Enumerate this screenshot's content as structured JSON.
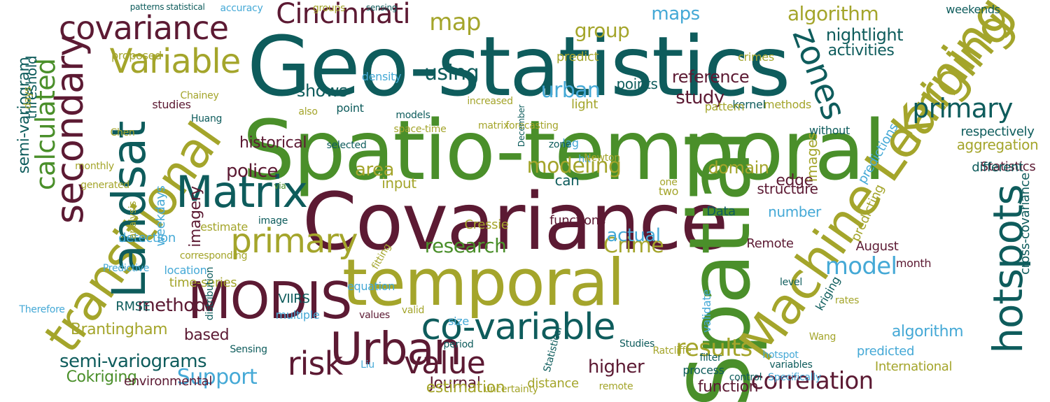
{
  "cloud": {
    "words": [
      {
        "text": "Geo-statistics",
        "color": "teal"
      },
      {
        "text": "Spatio-temporal",
        "color": "green"
      },
      {
        "text": "Covariance",
        "color": "maroon"
      },
      {
        "text": "Spatial",
        "color": "green"
      },
      {
        "text": "temporal",
        "color": "olive"
      },
      {
        "text": "Machine Learning",
        "color": "olive"
      },
      {
        "text": "Kriging",
        "color": "olive"
      },
      {
        "text": "transitional",
        "color": "olive"
      },
      {
        "text": "Landsat",
        "color": "teal"
      },
      {
        "text": "Matrix",
        "color": "teal"
      },
      {
        "text": "MODIS",
        "color": "maroon"
      },
      {
        "text": "Urban",
        "color": "maroon"
      },
      {
        "text": "co-variable",
        "color": "teal"
      },
      {
        "text": "primary",
        "color": "olive"
      },
      {
        "text": "secondary",
        "color": "maroon"
      },
      {
        "text": "Variable",
        "color": "olive"
      },
      {
        "text": "covariance",
        "color": "maroon"
      },
      {
        "text": "hotspots",
        "color": "teal"
      },
      {
        "text": "zones",
        "color": "teal"
      },
      {
        "text": "risk",
        "color": "maroon"
      },
      {
        "text": "value",
        "color": "maroon"
      },
      {
        "text": "Cincinnati",
        "color": "maroon"
      },
      {
        "text": "calculated",
        "color": "green"
      },
      {
        "text": "map",
        "color": "olive"
      },
      {
        "text": "algorithm",
        "color": "olive"
      },
      {
        "text": "maps",
        "color": "blue"
      },
      {
        "text": "nightlight",
        "color": "teal"
      },
      {
        "text": "activities",
        "color": "teal"
      },
      {
        "text": "weekends",
        "color": "teal"
      },
      {
        "text": "group",
        "color": "olive"
      },
      {
        "text": "using",
        "color": "teal"
      },
      {
        "text": "urban",
        "color": "blue"
      },
      {
        "text": "shows",
        "color": "teal"
      },
      {
        "text": "study",
        "color": "maroon"
      },
      {
        "text": "reference",
        "color": "maroon"
      },
      {
        "text": "primary",
        "color": "teal"
      },
      {
        "text": "results",
        "color": "olive"
      },
      {
        "text": "correlation",
        "color": "maroon"
      },
      {
        "text": "model",
        "color": "blue"
      },
      {
        "text": "Support",
        "color": "blue"
      },
      {
        "text": "Crime",
        "color": "olive"
      },
      {
        "text": "research",
        "color": "green"
      },
      {
        "text": "modeling",
        "color": "olive"
      },
      {
        "text": "police",
        "color": "maroon"
      },
      {
        "text": "area",
        "color": "olive"
      },
      {
        "text": "can",
        "color": "teal"
      },
      {
        "text": "input",
        "color": "olive"
      },
      {
        "text": "historical",
        "color": "maroon"
      },
      {
        "text": "domain",
        "color": "olive"
      },
      {
        "text": "edge",
        "color": "maroon"
      },
      {
        "text": "actual",
        "color": "blue"
      },
      {
        "text": "method",
        "color": "maroon"
      },
      {
        "text": "based",
        "color": "maroon"
      },
      {
        "text": "higher",
        "color": "maroon"
      },
      {
        "text": "Cokriging",
        "color": "green"
      },
      {
        "text": "semi-variograms",
        "color": "teal"
      },
      {
        "text": "Brantingham",
        "color": "olive"
      },
      {
        "text": "semi-variogram",
        "color": "teal"
      },
      {
        "text": "threshold",
        "color": "teal"
      },
      {
        "text": "aggregation",
        "color": "olive"
      },
      {
        "text": "respectively",
        "color": "teal"
      },
      {
        "text": "Statistics",
        "color": "maroon"
      },
      {
        "text": "predictions",
        "color": "blue"
      },
      {
        "text": "predicting",
        "color": "olive"
      },
      {
        "text": "number",
        "color": "blue"
      },
      {
        "text": "structure",
        "color": "maroon"
      },
      {
        "text": "imagery",
        "color": "maroon"
      },
      {
        "text": "detection",
        "color": "blue"
      },
      {
        "text": "weekdays",
        "color": "blue"
      },
      {
        "text": "location",
        "color": "blue"
      },
      {
        "text": "RMSE",
        "color": "teal"
      },
      {
        "text": "Journal",
        "color": "maroon"
      },
      {
        "text": "distance",
        "color": "olive"
      },
      {
        "text": "function",
        "color": "maroon"
      },
      {
        "text": "estimation",
        "color": "olive"
      },
      {
        "text": "predicted",
        "color": "blue"
      },
      {
        "text": "International",
        "color": "olive"
      },
      {
        "text": "algorithm",
        "color": "blue"
      },
      {
        "text": "cross-covariance",
        "color": "teal"
      },
      {
        "text": "environmental",
        "color": "maroon"
      },
      {
        "text": "Data",
        "color": "teal"
      },
      {
        "text": "VIIRS",
        "color": "teal"
      },
      {
        "text": "Remote",
        "color": "maroon"
      },
      {
        "text": "validate",
        "color": "blue"
      },
      {
        "text": "different",
        "color": "teal"
      },
      {
        "text": "month",
        "color": "maroon"
      },
      {
        "text": "August",
        "color": "maroon"
      },
      {
        "text": "images",
        "color": "olive"
      },
      {
        "text": "without",
        "color": "teal"
      },
      {
        "text": "points",
        "color": "teal"
      },
      {
        "text": "crimes",
        "color": "olive"
      },
      {
        "text": "light",
        "color": "olive"
      },
      {
        "text": "methods",
        "color": "olive"
      },
      {
        "text": "kernel",
        "color": "teal"
      },
      {
        "text": "point",
        "color": "teal"
      },
      {
        "text": "pattern",
        "color": "olive"
      },
      {
        "text": "predict",
        "color": "olive"
      },
      {
        "text": "density",
        "color": "blue"
      },
      {
        "text": "proposed",
        "color": "olive"
      },
      {
        "text": "studies",
        "color": "maroon"
      },
      {
        "text": "models",
        "color": "teal"
      },
      {
        "text": "Chen",
        "color": "olive"
      },
      {
        "text": "also",
        "color": "olive"
      },
      {
        "text": "hit",
        "color": "blue"
      },
      {
        "text": "one",
        "color": "olive"
      },
      {
        "text": "lag",
        "color": "blue"
      },
      {
        "text": "two",
        "color": "olive"
      },
      {
        "text": "Cressie",
        "color": "olive"
      },
      {
        "text": "functions",
        "color": "maroon"
      },
      {
        "text": "estimate",
        "color": "olive"
      },
      {
        "text": "time-series",
        "color": "olive"
      },
      {
        "text": "multiple",
        "color": "blue"
      },
      {
        "text": "values",
        "color": "maroon"
      },
      {
        "text": "fitting",
        "color": "olive"
      },
      {
        "text": "size",
        "color": "blue"
      },
      {
        "text": "period",
        "color": "teal"
      },
      {
        "text": "distribution",
        "color": "teal"
      },
      {
        "text": "Therefore",
        "color": "blue"
      },
      {
        "text": "patterns",
        "color": "teal"
      },
      {
        "text": "statistical",
        "color": "teal"
      },
      {
        "text": "accuracy",
        "color": "blue"
      },
      {
        "text": "groups",
        "color": "olive"
      },
      {
        "text": "sensing",
        "color": "teal"
      },
      {
        "text": "space-time",
        "color": "olive"
      },
      {
        "text": "analysis",
        "color": "olive"
      },
      {
        "text": "process",
        "color": "teal"
      },
      {
        "text": "remote",
        "color": "olive"
      },
      {
        "text": "uncertainty",
        "color": "olive"
      },
      {
        "text": "control",
        "color": "teal"
      },
      {
        "text": "Specifically",
        "color": "blue"
      },
      {
        "text": "filter",
        "color": "teal"
      },
      {
        "text": "Statistical",
        "color": "teal"
      },
      {
        "text": "variables",
        "color": "teal"
      },
      {
        "text": "rates",
        "color": "olive"
      },
      {
        "text": "Wang",
        "color": "olive"
      },
      {
        "text": "hotspot",
        "color": "blue"
      },
      {
        "text": "Studies",
        "color": "teal"
      },
      {
        "text": "Ratcliffe",
        "color": "olive"
      },
      {
        "text": "kriging",
        "color": "teal"
      },
      {
        "text": "level",
        "color": "teal"
      },
      {
        "text": "equation",
        "color": "blue"
      },
      {
        "text": "Liu",
        "color": "blue"
      },
      {
        "text": "valid",
        "color": "olive"
      },
      {
        "text": "Sensing",
        "color": "teal"
      },
      {
        "text": "corresponding",
        "color": "olive"
      },
      {
        "text": "image",
        "color": "teal"
      },
      {
        "text": "days",
        "color": "olive"
      },
      {
        "text": "Chainey",
        "color": "olive"
      },
      {
        "text": "Huang",
        "color": "teal"
      },
      {
        "text": "matrix",
        "color": "olive"
      },
      {
        "text": "increased",
        "color": "olive"
      },
      {
        "text": "selected",
        "color": "teal"
      },
      {
        "text": "zone",
        "color": "teal"
      },
      {
        "text": "Newton",
        "color": "olive"
      },
      {
        "text": "forecasting",
        "color": "olive"
      },
      {
        "text": "December",
        "color": "teal"
      },
      {
        "text": "monthly",
        "color": "olive"
      },
      {
        "text": "generated",
        "color": "olive"
      },
      {
        "text": "via",
        "color": "green"
      },
      {
        "text": "Predictive",
        "color": "blue"
      }
    ]
  }
}
